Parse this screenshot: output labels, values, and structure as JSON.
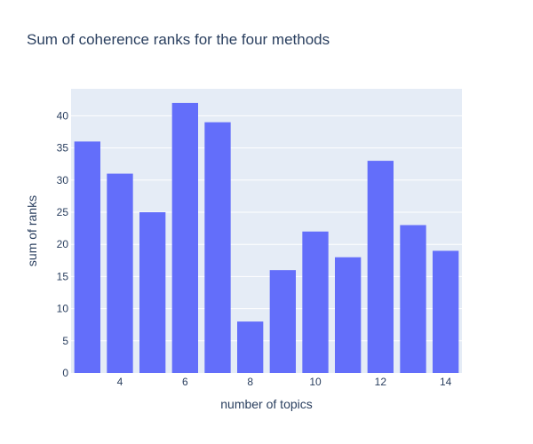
{
  "colors": {
    "plot_background": "#e5ecf6",
    "gridline": "#ffffff",
    "bar_fill": "#636efa",
    "text": "#2a3f5f"
  },
  "chart_data": {
    "type": "bar",
    "title": "Sum of coherence ranks for the four methods",
    "xlabel": "number of topics",
    "ylabel": "sum of ranks",
    "x": [
      3,
      4,
      5,
      6,
      7,
      8,
      9,
      10,
      11,
      12,
      13,
      14
    ],
    "values": [
      36,
      31,
      25,
      42,
      39,
      8,
      16,
      22,
      18,
      33,
      23,
      19
    ],
    "xlim": [
      2.5,
      14.5
    ],
    "ylim": [
      0,
      44.2
    ],
    "xticks": [
      4,
      6,
      8,
      10,
      12,
      14
    ],
    "yticks": [
      0,
      5,
      10,
      15,
      20,
      25,
      30,
      35,
      40
    ],
    "grid": true,
    "legend": "none"
  }
}
